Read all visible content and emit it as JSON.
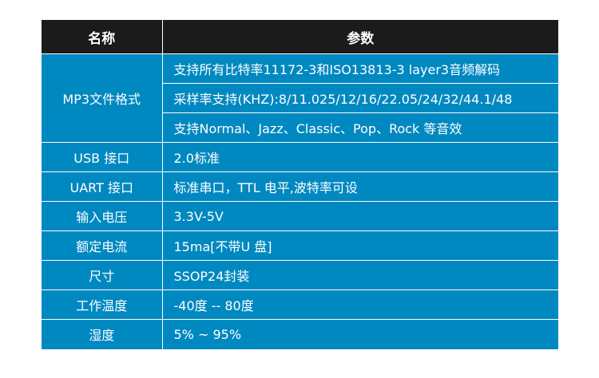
{
  "table": {
    "headers": [
      "名称",
      "参数"
    ],
    "rows": [
      {
        "name": "MP3文件格式",
        "values": [
          "支持所有比特率11172-3和ISO13813-3 layer3音频解码",
          "采样率支持(KHZ):8/11.025/12/16/22.05/24/32/44.1/48",
          "支持Normal、Jazz、Classic、Pop、Rock 等音效"
        ]
      },
      {
        "name": "USB 接口",
        "values": [
          "2.0标准"
        ]
      },
      {
        "name": "UART 接口",
        "values": [
          "标准串口，TTL 电平,波特率可设"
        ]
      },
      {
        "name": "输入电压",
        "values": [
          "3.3V-5V"
        ]
      },
      {
        "name": "额定电流",
        "values": [
          "15ma[不带U 盘]"
        ]
      },
      {
        "name": "尺寸",
        "values": [
          "SSOP24封装"
        ]
      },
      {
        "name": "工作温度",
        "values": [
          "-40度 -- 80度"
        ]
      },
      {
        "name": "湿度",
        "values": [
          "5% ~ 95%"
        ]
      }
    ]
  },
  "colors": {
    "header_bg": "#1b1b1b",
    "cell_bg": "#0088c0",
    "text": "#ffffff"
  }
}
